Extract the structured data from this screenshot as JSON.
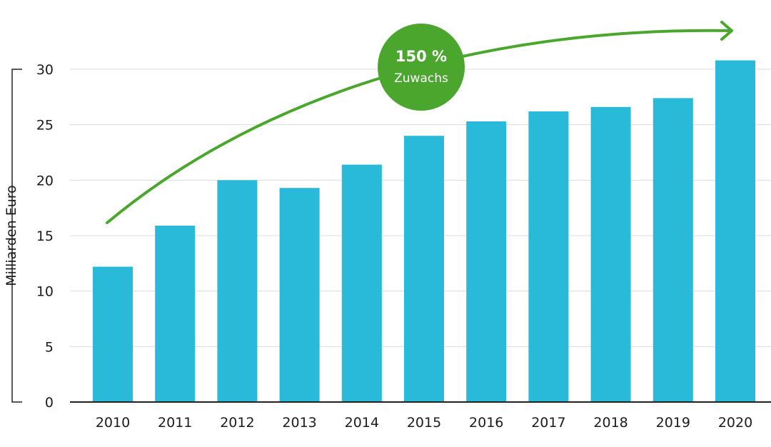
{
  "chart_data": {
    "type": "bar",
    "categories": [
      "2010",
      "2011",
      "2012",
      "2013",
      "2014",
      "2015",
      "2016",
      "2017",
      "2018",
      "2019",
      "2020"
    ],
    "values": [
      12.2,
      15.9,
      20.0,
      19.3,
      21.4,
      24.0,
      25.3,
      26.2,
      26.6,
      27.4,
      30.8
    ],
    "xlabel": "",
    "ylabel": "Milliarden Euro",
    "ylim": [
      0,
      30
    ],
    "yticks": [
      0,
      5,
      10,
      15,
      20,
      25,
      30
    ],
    "grid": true,
    "annotation": {
      "value": "150 %",
      "label": "Zuwachs"
    },
    "colors": {
      "bar": "#29b9d9",
      "arrow": "#4aa62c",
      "badge": "#4aa62c",
      "grid": "#dcdcdc",
      "axis": "#222222"
    }
  }
}
